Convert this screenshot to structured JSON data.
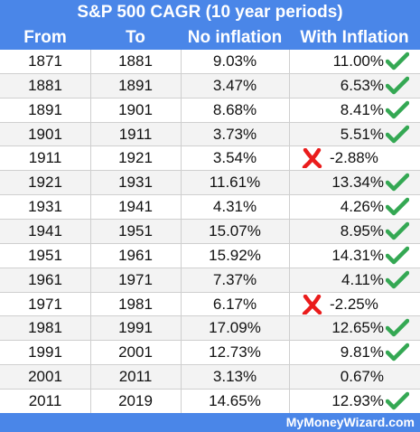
{
  "title": "S&P 500 CAGR (10 year periods)",
  "columns": [
    "From",
    "To",
    "No inflation",
    "With Inflation"
  ],
  "rows": [
    {
      "from": "1871",
      "to": "1881",
      "no_inflation": "9.03%",
      "with_inflation": "11.00%",
      "mark": "check"
    },
    {
      "from": "1881",
      "to": "1891",
      "no_inflation": "3.47%",
      "with_inflation": "6.53%",
      "mark": "check"
    },
    {
      "from": "1891",
      "to": "1901",
      "no_inflation": "8.68%",
      "with_inflation": "8.41%",
      "mark": "check"
    },
    {
      "from": "1901",
      "to": "1911",
      "no_inflation": "3.73%",
      "with_inflation": "5.51%",
      "mark": "check"
    },
    {
      "from": "1911",
      "to": "1921",
      "no_inflation": "3.54%",
      "with_inflation": "-2.88%",
      "mark": "cross"
    },
    {
      "from": "1921",
      "to": "1931",
      "no_inflation": "11.61%",
      "with_inflation": "13.34%",
      "mark": "check"
    },
    {
      "from": "1931",
      "to": "1941",
      "no_inflation": "4.31%",
      "with_inflation": "4.26%",
      "mark": "check"
    },
    {
      "from": "1941",
      "to": "1951",
      "no_inflation": "15.07%",
      "with_inflation": "8.95%",
      "mark": "check"
    },
    {
      "from": "1951",
      "to": "1961",
      "no_inflation": "15.92%",
      "with_inflation": "14.31%",
      "mark": "check"
    },
    {
      "from": "1961",
      "to": "1971",
      "no_inflation": "7.37%",
      "with_inflation": "4.11%",
      "mark": "check"
    },
    {
      "from": "1971",
      "to": "1981",
      "no_inflation": "6.17%",
      "with_inflation": "-2.25%",
      "mark": "cross"
    },
    {
      "from": "1981",
      "to": "1991",
      "no_inflation": "17.09%",
      "with_inflation": "12.65%",
      "mark": "check"
    },
    {
      "from": "1991",
      "to": "2001",
      "no_inflation": "12.73%",
      "with_inflation": "9.81%",
      "mark": "check"
    },
    {
      "from": "2001",
      "to": "2011",
      "no_inflation": "3.13%",
      "with_inflation": "0.67%",
      "mark": "none"
    },
    {
      "from": "2011",
      "to": "2019",
      "no_inflation": "14.65%",
      "with_inflation": "12.93%",
      "mark": "check"
    }
  ],
  "footer": "MyMoneyWizard.com",
  "colors": {
    "header": "#4a86e8",
    "check": "#34a853",
    "cross": "#ea1c1c"
  }
}
